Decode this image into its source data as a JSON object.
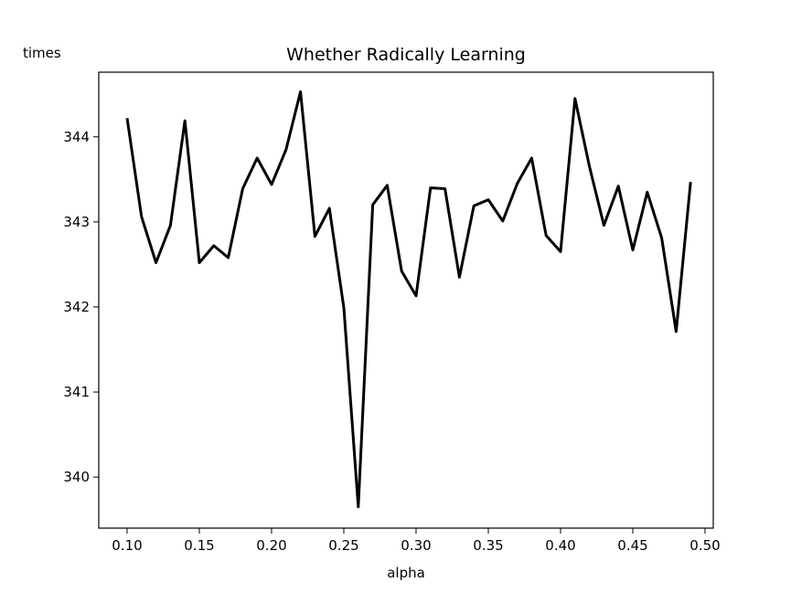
{
  "chart_data": {
    "type": "line",
    "title": "Whether Radically Learning",
    "xlabel": "alpha",
    "ylabel": "times",
    "xlim": [
      0.0804,
      0.5057
    ],
    "ylim": [
      339.4,
      344.76
    ],
    "grid": false,
    "xticks": [
      0.1,
      0.15,
      0.2,
      0.25,
      0.3,
      0.35,
      0.4,
      0.45,
      0.5
    ],
    "xtick_labels": [
      "0.10",
      "0.15",
      "0.20",
      "0.25",
      "0.30",
      "0.35",
      "0.40",
      "0.45",
      "0.50"
    ],
    "yticks": [
      340,
      341,
      342,
      343,
      344
    ],
    "ytick_labels": [
      "340",
      "341",
      "342",
      "343",
      "344"
    ],
    "series": [
      {
        "name": "times",
        "color": "#000000",
        "x": [
          0.1,
          0.11,
          0.12,
          0.13,
          0.14,
          0.15,
          0.16,
          0.17,
          0.18,
          0.19,
          0.2,
          0.21,
          0.22,
          0.23,
          0.24,
          0.25,
          0.26,
          0.27,
          0.28,
          0.29,
          0.3,
          0.31,
          0.32,
          0.33,
          0.34,
          0.35,
          0.36,
          0.37,
          0.38,
          0.39,
          0.4,
          0.41,
          0.42,
          0.43,
          0.44,
          0.45,
          0.46,
          0.47,
          0.48,
          0.49
        ],
        "values": [
          344.22,
          343.06,
          342.52,
          342.96,
          344.19,
          342.52,
          342.72,
          342.58,
          343.39,
          343.75,
          343.44,
          343.85,
          344.53,
          342.83,
          343.16,
          341.99,
          339.65,
          343.2,
          343.43,
          342.42,
          342.13,
          343.4,
          343.39,
          342.35,
          343.19,
          343.26,
          343.01,
          343.45,
          343.75,
          342.84,
          342.65,
          344.45,
          343.65,
          342.96,
          343.42,
          342.67,
          343.35,
          342.81,
          341.71,
          343.47
        ]
      }
    ]
  }
}
